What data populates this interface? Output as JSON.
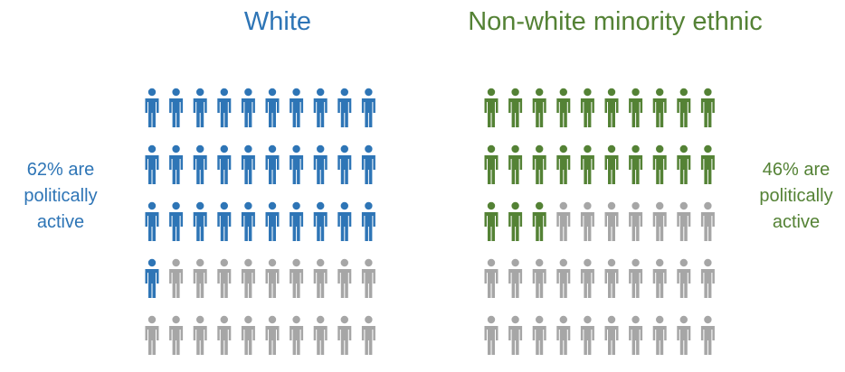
{
  "chart_data": [
    {
      "type": "pictogram",
      "title": "White",
      "values": [
        62
      ],
      "value_labels": [
        "62% are politically active"
      ],
      "color": "#2e75b6",
      "empty_color": "#a6a6a6"
    },
    {
      "type": "pictogram",
      "title": "Non-white minority ethnic",
      "values": [
        46
      ],
      "value_labels": [
        "46% are politically active"
      ],
      "color": "#548235",
      "empty_color": "#a6a6a6"
    }
  ]
}
